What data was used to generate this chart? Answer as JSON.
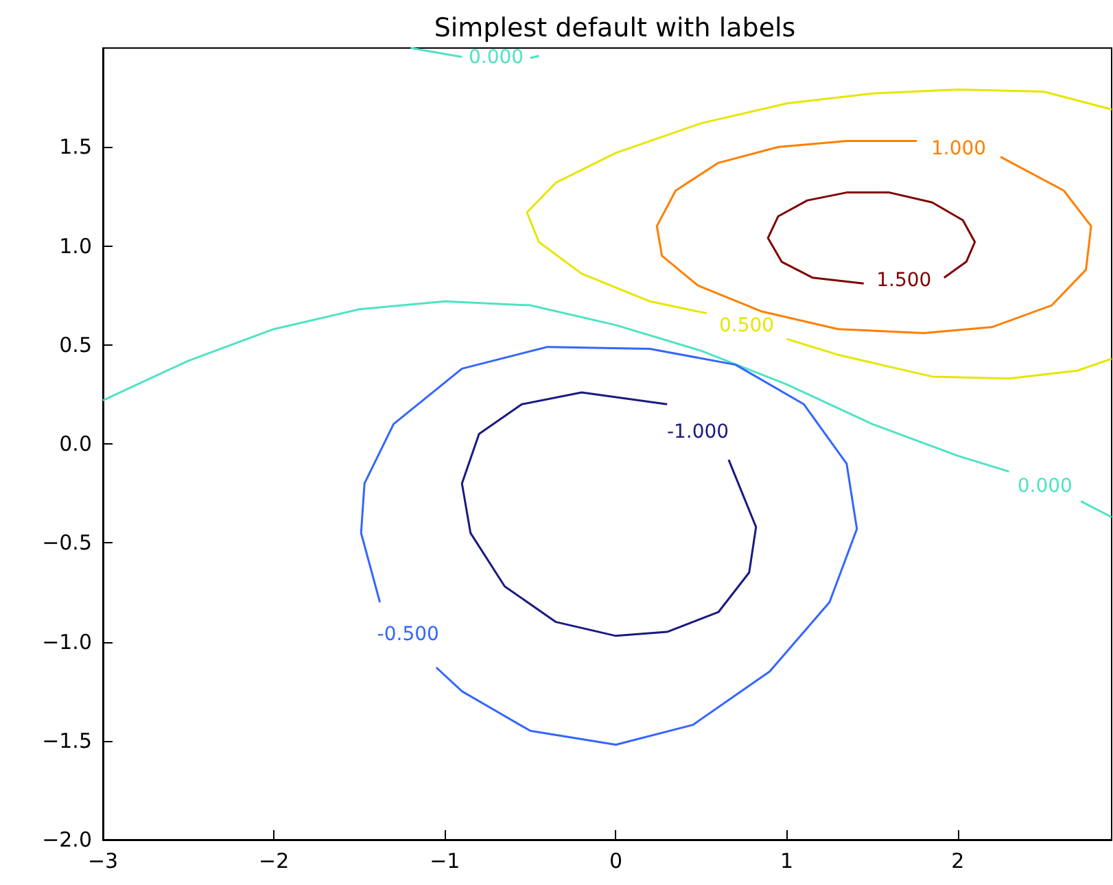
{
  "chart_data": {
    "type": "line",
    "title": "Simplest default with labels",
    "marker": "none",
    "grid": false,
    "legend": false,
    "xlim": [
      -3,
      2.9
    ],
    "xticks": [
      {
        "value": -3,
        "label": "−3"
      },
      {
        "value": -2,
        "label": "−2"
      },
      {
        "value": -1,
        "label": "−1"
      },
      0,
      1,
      2
    ],
    "ylim": [
      -2,
      2
    ],
    "yticks": [
      {
        "value": -2,
        "label": "−2.0"
      },
      {
        "value": -1.5,
        "label": "−1.5"
      },
      {
        "value": -1,
        "label": "−1.0"
      },
      {
        "value": -0.5,
        "label": "−0.5"
      },
      {
        "value": 0,
        "label": "0.0"
      },
      0.5,
      {
        "value": 1,
        "label": "1.0"
      },
      1.5
    ],
    "series": [
      {
        "name": "1.500",
        "color": "#800000",
        "x": [
          1.45,
          1.15,
          0.97,
          0.89,
          0.95,
          1.12,
          1.35,
          1.6,
          1.85,
          2.03,
          2.1,
          2.05,
          1.92
        ],
        "values": [
          0.81,
          0.84,
          0.92,
          1.04,
          1.15,
          1.23,
          1.27,
          1.27,
          1.22,
          1.13,
          1.02,
          0.92,
          0.84
        ]
      },
      {
        "name": "1.000",
        "color": "#ff7f00",
        "x": [
          2.25,
          2.62,
          2.78,
          2.75,
          2.55,
          2.2,
          1.8,
          1.3,
          0.85,
          0.48,
          0.27,
          0.24,
          0.35,
          0.6,
          0.95,
          1.35,
          1.76
        ],
        "values": [
          1.45,
          1.28,
          1.1,
          0.88,
          0.7,
          0.59,
          0.56,
          0.58,
          0.67,
          0.8,
          0.95,
          1.1,
          1.28,
          1.42,
          1.5,
          1.53,
          1.53
        ]
      },
      {
        "name": "0.500",
        "color": "#e6e600",
        "x": [
          1.0,
          1.3,
          1.85,
          2.3,
          2.7,
          2.9,
          null,
          2.9,
          2.5,
          2.0,
          1.5,
          1.0,
          0.5,
          0.0,
          -0.35,
          -0.52,
          -0.45,
          -0.2,
          0.2,
          0.53
        ],
        "values": [
          0.53,
          0.45,
          0.34,
          0.33,
          0.37,
          0.43,
          null,
          1.69,
          1.78,
          1.79,
          1.77,
          1.72,
          1.62,
          1.47,
          1.32,
          1.17,
          1.02,
          0.86,
          0.72,
          0.66
        ]
      },
      {
        "name": "0.000",
        "color": "#4fe3c3",
        "x": [
          2.72,
          2.9,
          null,
          -3,
          -2.5,
          -2,
          -1.5,
          -1.0,
          -0.5,
          0,
          0.5,
          1.0,
          1.5,
          2.0,
          2.3
        ],
        "values": [
          -0.29,
          -0.37,
          null,
          0.22,
          0.42,
          0.58,
          0.68,
          0.72,
          0.7,
          0.6,
          0.47,
          0.3,
          0.1,
          -0.06,
          -0.14
        ]
      },
      {
        "name": "0.000",
        "color": "#4fe3c3",
        "x": [
          -0.9,
          -1.2,
          null,
          -0.45,
          -0.5
        ],
        "values": [
          1.955,
          2.0,
          null,
          1.96,
          1.95
        ]
      },
      {
        "name": "-0.500",
        "color": "#3366ff",
        "x": [
          -1.05,
          -0.9,
          -0.5,
          0,
          0.45,
          0.9,
          1.25,
          1.41,
          1.35,
          1.1,
          0.7,
          0.2,
          -0.4,
          -0.9,
          -1.3,
          -1.47,
          -1.49,
          -1.38
        ],
        "values": [
          -1.13,
          -1.25,
          -1.45,
          -1.52,
          -1.42,
          -1.15,
          -0.8,
          -0.43,
          -0.1,
          0.2,
          0.4,
          0.48,
          0.49,
          0.38,
          0.1,
          -0.2,
          -0.45,
          -0.8
        ]
      },
      {
        "name": "-1.000",
        "color": "#1a1a80",
        "x": [
          0.66,
          0.82,
          0.78,
          0.6,
          0.3,
          0,
          -0.35,
          -0.65,
          -0.85,
          -0.9,
          -0.8,
          -0.55,
          -0.2,
          0.3
        ],
        "values": [
          -0.08,
          -0.42,
          -0.65,
          -0.85,
          -0.95,
          -0.97,
          -0.9,
          -0.72,
          -0.45,
          -0.2,
          0.05,
          0.2,
          0.26,
          0.2
        ]
      }
    ]
  }
}
